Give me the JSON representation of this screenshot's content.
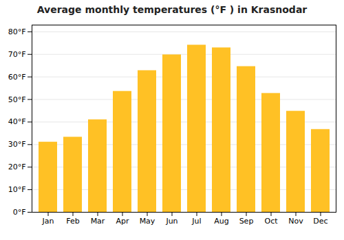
{
  "chart_data": {
    "type": "bar",
    "title": "Average monthly temperatures (°F ) in Krasnodar",
    "categories": [
      "Jan",
      "Feb",
      "Mar",
      "Apr",
      "May",
      "Jun",
      "Jul",
      "Aug",
      "Sep",
      "Oct",
      "Nov",
      "Dec"
    ],
    "values": [
      31.1,
      33.3,
      41.0,
      53.6,
      62.8,
      69.8,
      74.1,
      72.9,
      64.6,
      52.7,
      44.8,
      36.7
    ],
    "color": "#FFC125",
    "ylim": [
      0,
      83
    ],
    "yticks": [
      {
        "value": 0,
        "label": "0°F"
      },
      {
        "value": 10,
        "label": "10°F"
      },
      {
        "value": 20,
        "label": "20°F"
      },
      {
        "value": 30,
        "label": "30°F"
      },
      {
        "value": 40,
        "label": "40°F"
      },
      {
        "value": 50,
        "label": "50°F"
      },
      {
        "value": 60,
        "label": "60°F"
      },
      {
        "value": 70,
        "label": "70°F"
      },
      {
        "value": 80,
        "label": "80°F"
      }
    ],
    "grid": true
  }
}
